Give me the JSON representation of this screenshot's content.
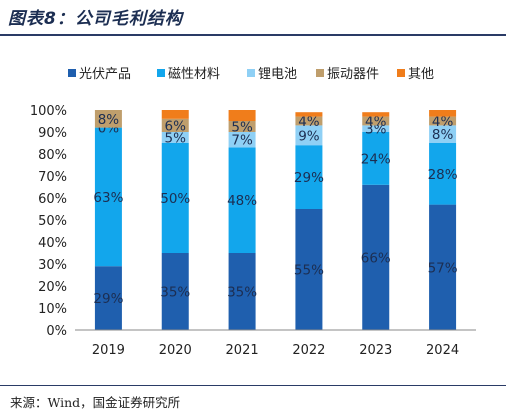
{
  "header": {
    "title": "图表8：公司毛利结构"
  },
  "footer": {
    "source": "来源：Wind，国金证券研究所"
  },
  "chart_data": {
    "type": "bar",
    "stacked": true,
    "categories": [
      "2019",
      "2020",
      "2021",
      "2022",
      "2023",
      "2024"
    ],
    "ylim": [
      0,
      100
    ],
    "yticks": [
      0,
      10,
      20,
      30,
      40,
      50,
      60,
      70,
      80,
      90,
      100
    ],
    "ytick_suffix": "%",
    "legend_position": "top",
    "grid": false,
    "series": [
      {
        "name": "光伏产品",
        "color": "#1f5fae",
        "values": [
          29,
          35,
          35,
          55,
          66,
          57
        ],
        "labels": [
          "29%",
          "35%",
          "35%",
          "55%",
          "66%",
          "57%"
        ]
      },
      {
        "name": "磁性材料",
        "color": "#12a6ec",
        "values": [
          63,
          50,
          48,
          29,
          24,
          28
        ],
        "labels": [
          "63%",
          "50%",
          "48%",
          "29%",
          "24%",
          "28%"
        ]
      },
      {
        "name": "锂电池",
        "color": "#8fd0f5",
        "values": [
          0,
          5,
          7,
          9,
          3,
          8
        ],
        "labels": [
          "0%",
          "5%",
          "7%",
          "9%",
          "3%",
          "8%"
        ]
      },
      {
        "name": "振动器件",
        "color": "#bf9e6c",
        "values": [
          8,
          6,
          5,
          4,
          4,
          4
        ],
        "labels": [
          "8%",
          "6%",
          "5%",
          "4%",
          "4%",
          "4%"
        ]
      },
      {
        "name": "其他",
        "color": "#f07d1b",
        "values": [
          0,
          4,
          5,
          2,
          2,
          3
        ],
        "labels": [
          "",
          "",
          "",
          "",
          "",
          ""
        ]
      }
    ]
  }
}
